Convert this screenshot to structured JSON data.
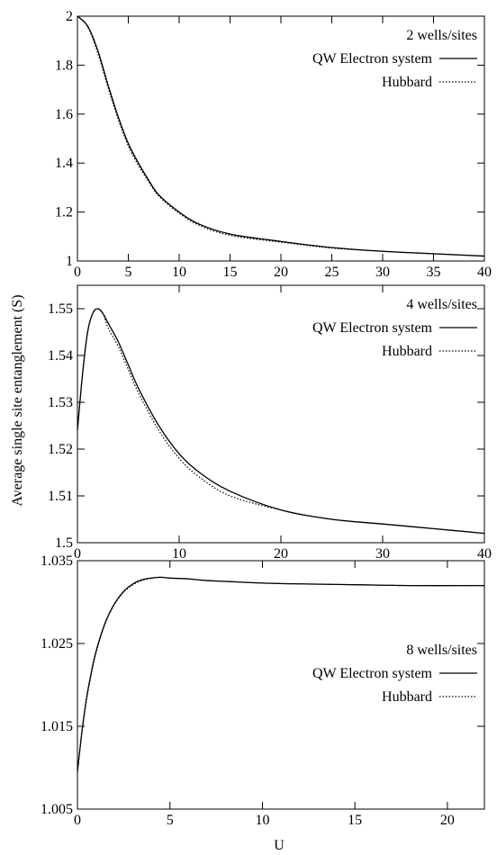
{
  "ylabel": "Average single site entanglement (S)",
  "xlabel": "U",
  "chart_data": [
    {
      "type": "line",
      "annotation": "2 wells/sites",
      "xlim": [
        0,
        40
      ],
      "ylim": [
        1,
        2
      ],
      "xticks": [
        "0",
        "5",
        "10",
        "15",
        "20",
        "25",
        "30",
        "35",
        "40"
      ],
      "yticks": [
        "1",
        "1.2",
        "1.4",
        "1.6",
        "1.8",
        "2"
      ],
      "legend_position": "top-right",
      "series": [
        {
          "name": "QW Electron system",
          "style": "solid",
          "x": [
            0,
            1,
            2,
            3,
            4,
            5,
            6,
            7,
            8,
            10,
            12,
            15,
            20,
            25,
            30,
            35,
            40
          ],
          "y": [
            2.0,
            1.96,
            1.86,
            1.72,
            1.59,
            1.48,
            1.4,
            1.33,
            1.27,
            1.2,
            1.15,
            1.11,
            1.08,
            1.055,
            1.04,
            1.03,
            1.02
          ]
        },
        {
          "name": "Hubbard",
          "style": "dotted",
          "x": [
            0,
            1,
            2,
            3,
            4,
            5,
            6,
            7,
            8,
            10,
            12,
            15,
            20,
            25,
            30,
            35,
            40
          ],
          "y": [
            2.0,
            1.957,
            1.85,
            1.71,
            1.58,
            1.47,
            1.39,
            1.325,
            1.265,
            1.195,
            1.145,
            1.105,
            1.077,
            1.053,
            1.039,
            1.029,
            1.02
          ]
        }
      ]
    },
    {
      "type": "line",
      "annotation": "4 wells/sites",
      "xlim": [
        0,
        40
      ],
      "ylim": [
        1.5,
        1.555
      ],
      "xticks": [
        "0",
        "10",
        "20",
        "30",
        "40"
      ],
      "yticks": [
        "1.5",
        "1.51",
        "1.52",
        "1.53",
        "1.54",
        "1.55"
      ],
      "legend_position": "top-right",
      "series": [
        {
          "name": "QW Electron system",
          "style": "solid",
          "x": [
            0,
            0.5,
            1,
            1.5,
            2,
            2.5,
            3,
            4,
            5,
            6,
            8,
            10,
            12,
            15,
            20,
            25,
            30,
            35,
            40
          ],
          "y": [
            1.524,
            1.536,
            1.545,
            1.549,
            1.55,
            1.549,
            1.547,
            1.543,
            1.538,
            1.533,
            1.525,
            1.519,
            1.515,
            1.511,
            1.507,
            1.505,
            1.504,
            1.503,
            1.502
          ]
        },
        {
          "name": "Hubbard",
          "style": "dotted",
          "x": [
            0,
            0.5,
            1,
            1.5,
            2,
            2.5,
            3,
            4,
            5,
            6,
            8,
            10,
            12,
            15,
            20,
            25,
            30,
            35,
            40
          ],
          "y": [
            1.524,
            1.536,
            1.545,
            1.549,
            1.55,
            1.549,
            1.546,
            1.542,
            1.537,
            1.532,
            1.524,
            1.518,
            1.514,
            1.51,
            1.507,
            1.505,
            1.504,
            1.503,
            1.502
          ]
        }
      ]
    },
    {
      "type": "line",
      "annotation": "8 wells/sites",
      "xlim": [
        0,
        22
      ],
      "ylim": [
        1.005,
        1.035
      ],
      "xticks": [
        "0",
        "5",
        "10",
        "15",
        "20"
      ],
      "yticks": [
        "1.005",
        "1.015",
        "1.025",
        "1.035"
      ],
      "legend_position": "top-right",
      "series": [
        {
          "name": "QW Electron system",
          "style": "solid",
          "x": [
            0,
            0.25,
            0.5,
            0.75,
            1,
            1.5,
            2,
            2.5,
            3,
            3.5,
            4,
            4.5,
            5,
            6,
            7,
            8,
            10,
            12,
            15,
            18,
            22
          ],
          "y": [
            1.0095,
            1.0145,
            1.0185,
            1.0215,
            1.024,
            1.0275,
            1.0298,
            1.0313,
            1.0322,
            1.0327,
            1.0329,
            1.033,
            1.0329,
            1.0328,
            1.0326,
            1.0325,
            1.0323,
            1.0322,
            1.0321,
            1.032,
            1.032
          ]
        },
        {
          "name": "Hubbard",
          "style": "dotted",
          "x": [
            0,
            0.25,
            0.5,
            0.75,
            1,
            1.5,
            2,
            2.5,
            3,
            3.5,
            4,
            4.5,
            5,
            6,
            7,
            8,
            10,
            12,
            15,
            18,
            22
          ],
          "y": [
            1.0095,
            1.0143,
            1.0183,
            1.0213,
            1.0238,
            1.0274,
            1.0297,
            1.0312,
            1.0321,
            1.0326,
            1.0329,
            1.033,
            1.0329,
            1.0328,
            1.0326,
            1.0325,
            1.0323,
            1.0322,
            1.0321,
            1.032,
            1.032
          ]
        }
      ]
    }
  ]
}
